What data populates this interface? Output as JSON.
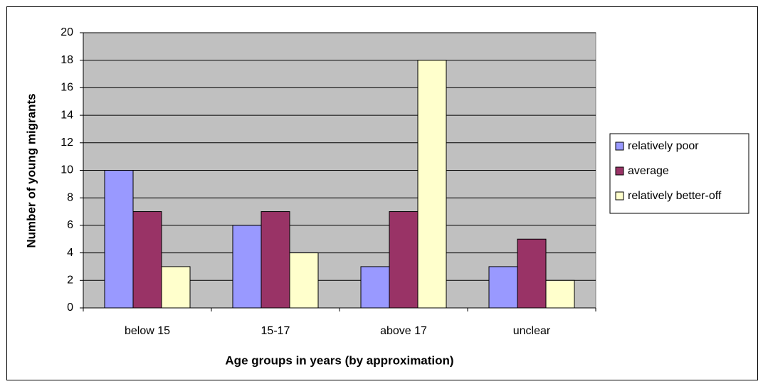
{
  "chart_data": {
    "type": "bar",
    "xlabel": "Age groups in years (by approximation)",
    "ylabel": "Number of young migrants",
    "categories": [
      "below 15",
      "15-17",
      "above 17",
      "unclear"
    ],
    "series": [
      {
        "name": "relatively poor",
        "color": "#9999ff",
        "values": [
          10,
          6,
          3,
          3
        ]
      },
      {
        "name": "average",
        "color": "#993366",
        "values": [
          7,
          7,
          7,
          5
        ]
      },
      {
        "name": "relatively better-off",
        "color": "#ffffcc",
        "values": [
          3,
          4,
          18,
          2
        ]
      }
    ],
    "ylim": [
      0,
      20
    ],
    "yticks": [
      0,
      2,
      4,
      6,
      8,
      10,
      12,
      14,
      16,
      18,
      20
    ],
    "grid": true,
    "legend": "right",
    "background": "#c0c0c0"
  }
}
